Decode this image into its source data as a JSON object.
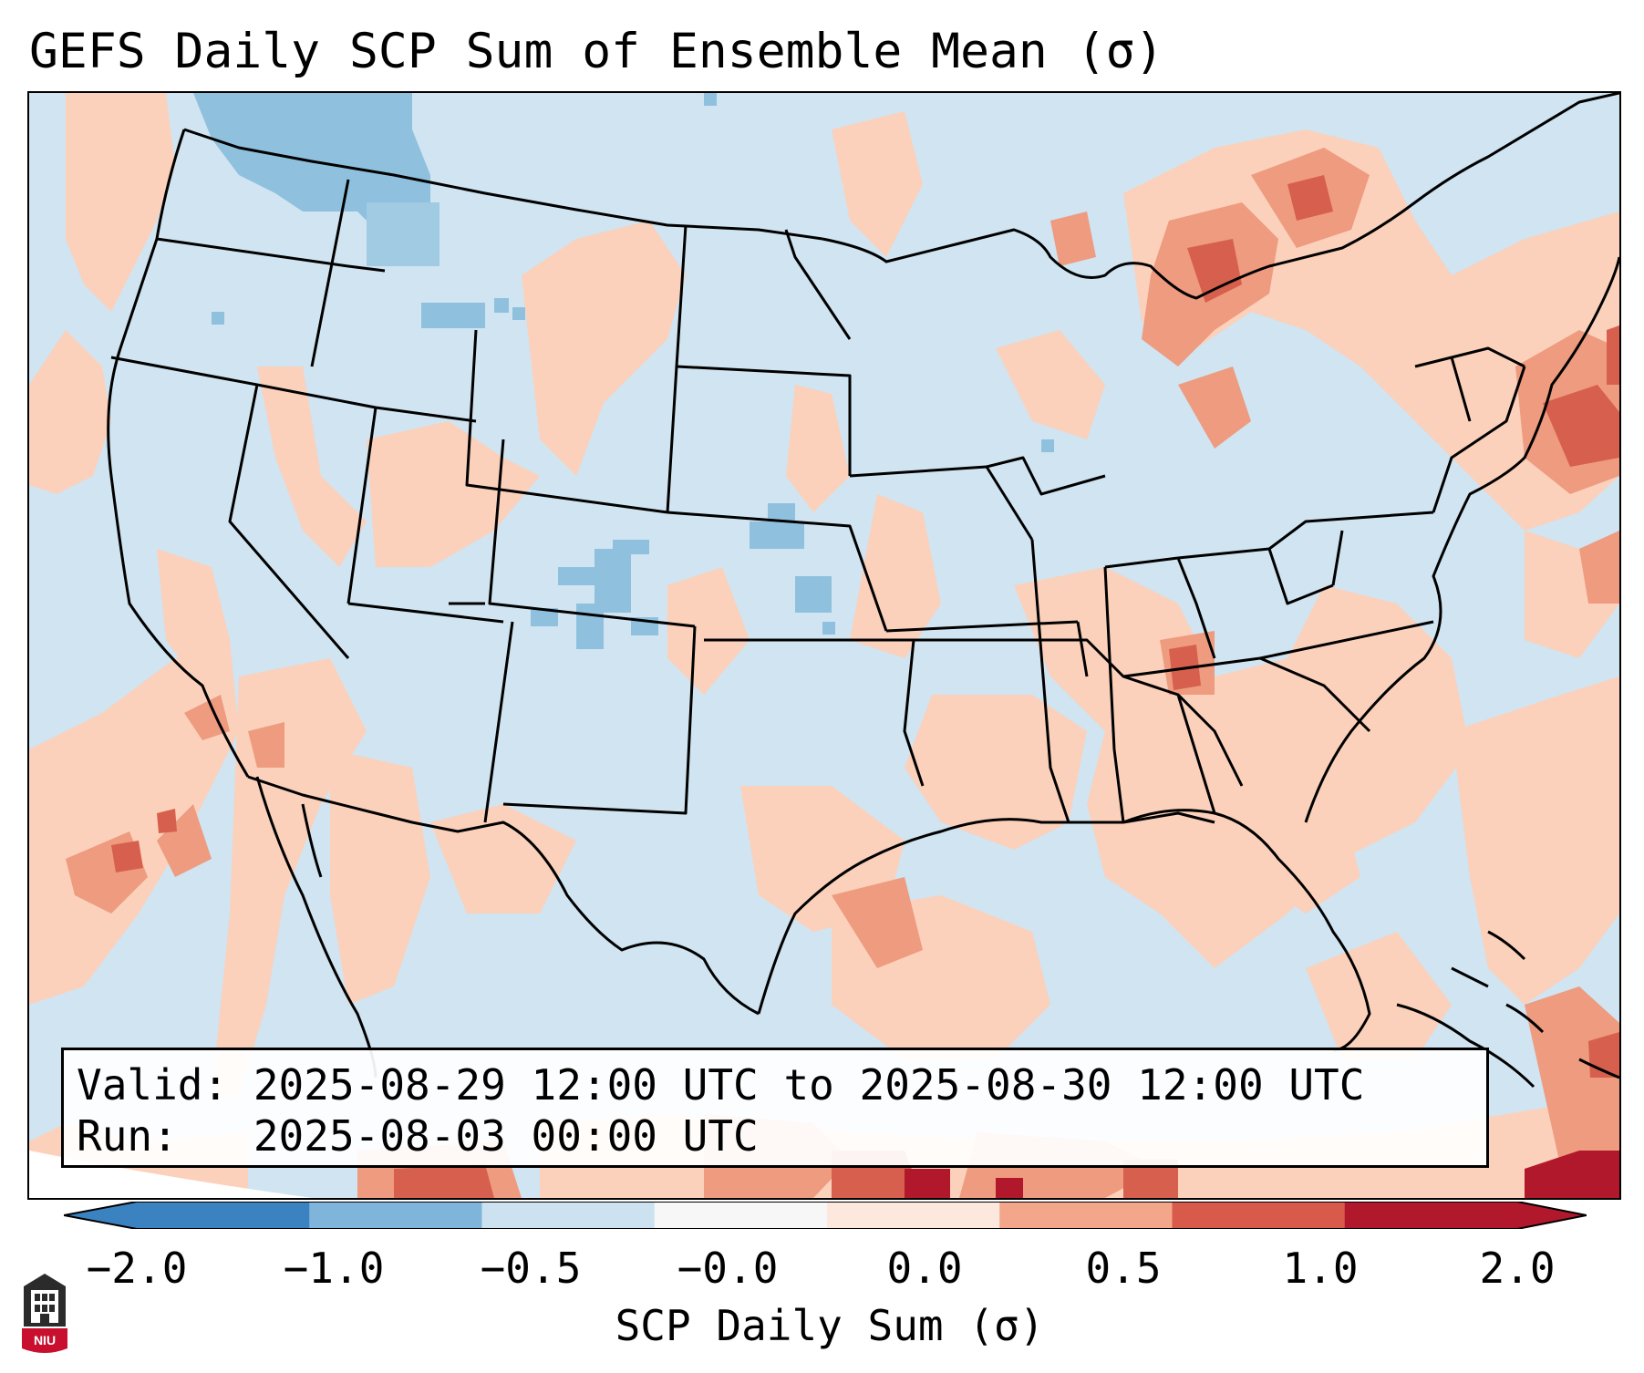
{
  "title": "GEFS Daily SCP Sum of Ensemble Mean (σ)",
  "info_box": {
    "valid_line": "Valid: 2025-08-29 12:00 UTC to 2025-08-30 12:00 UTC",
    "run_line": "Run:   2025-08-03 00:00 UTC"
  },
  "colorbar": {
    "label": "SCP Daily Sum (σ)",
    "ticks": [
      "−2.0",
      "−1.0",
      "−0.5",
      "−0.0",
      "0.0",
      "0.5",
      "1.0",
      "2.0"
    ],
    "colors": [
      "#3b82c0",
      "#7fb5da",
      "#cde2f0",
      "#f7f7f7",
      "#fde8de",
      "#f3a68a",
      "#d85a4b",
      "#b2182b"
    ]
  },
  "legend_colors": {
    "background": "#d0e4f1",
    "light_red": "#fbd1bb",
    "med_red": "#ee9b7f",
    "dark_red": "#d6604d",
    "deep_red": "#b2182b",
    "light_blue": "#a8cde4",
    "med_blue": "#86bcdc"
  },
  "logo_text": "NIU"
}
